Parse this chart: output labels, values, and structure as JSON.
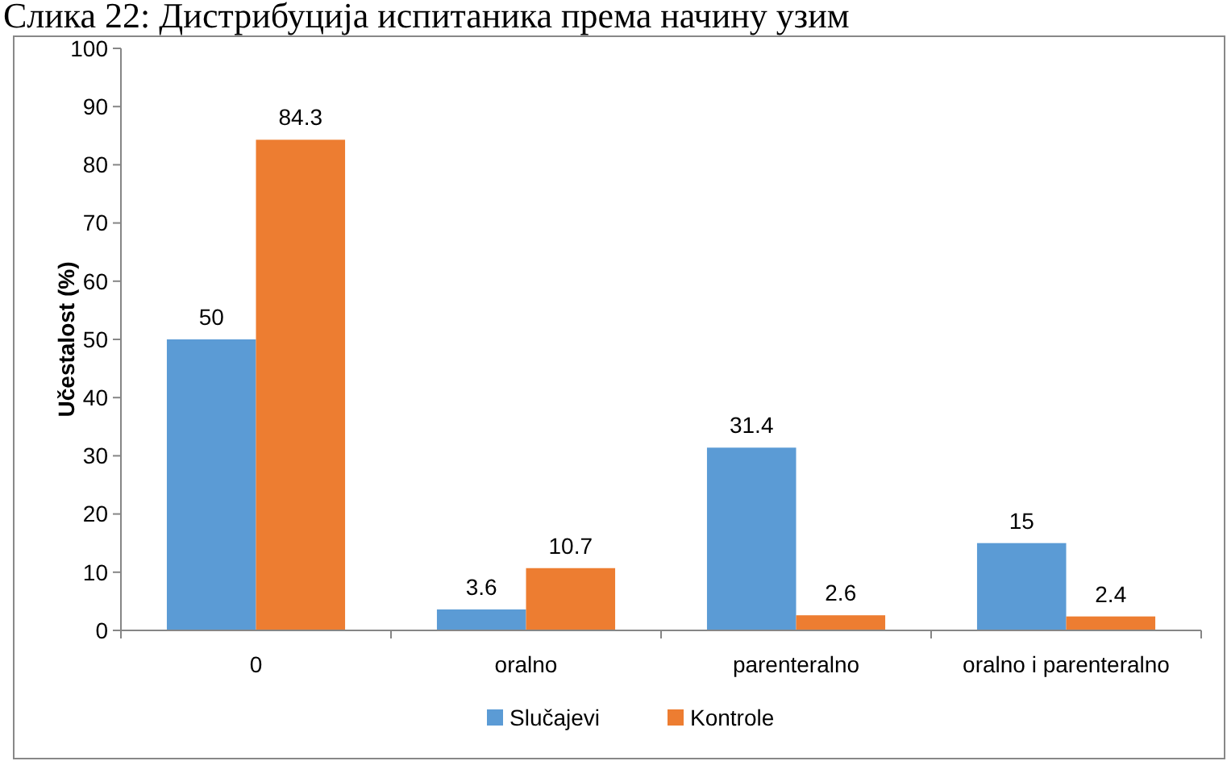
{
  "chart_data": {
    "type": "bar",
    "title": "Слика 22: Дистрибуција испитаника према начину узим",
    "ylabel": "Učestalost (%)",
    "categories": [
      "0",
      "oralno",
      "parenteralno",
      "oralno i parenteralno"
    ],
    "series": [
      {
        "name": "Slučajevi",
        "color": "#5b9bd5",
        "values": [
          50,
          3.6,
          31.4,
          15
        ]
      },
      {
        "name": "Kontrole",
        "color": "#ed7d31",
        "values": [
          84.3,
          10.7,
          2.6,
          2.4
        ]
      }
    ],
    "ylim": [
      0,
      100
    ],
    "yticks": [
      0,
      10,
      20,
      30,
      40,
      50,
      60,
      70,
      80,
      90,
      100
    ],
    "data_labels": true,
    "legend": "bottom",
    "grid": false
  }
}
